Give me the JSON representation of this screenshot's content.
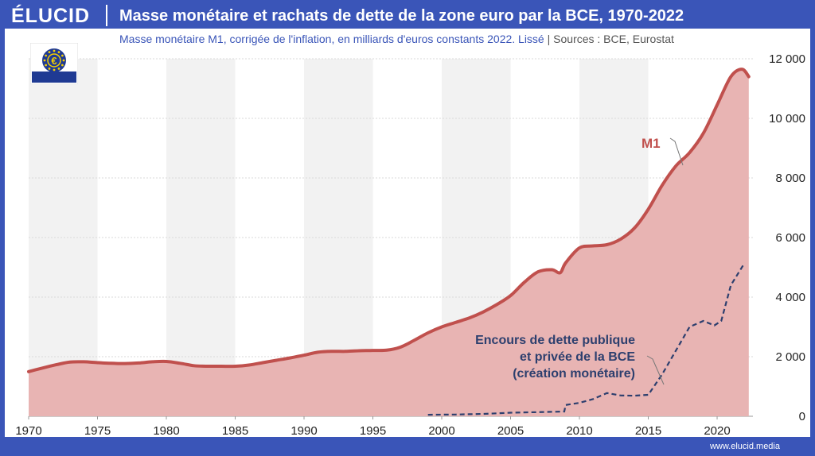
{
  "header": {
    "logo": "ÉLUCID",
    "title": "Masse monétaire et rachats de dette de la zone euro par la BCE, 1970-2022"
  },
  "subtitle": {
    "main": "Masse monétaire M1, corrigée de l'inflation, en milliards d'euros constants 2022. Lissé",
    "sep": "|",
    "sources": "Sources : BCE, Eurostat"
  },
  "footer": {
    "url": "www.elucid.media"
  },
  "logo_icon": "ecb-euro-stars-icon",
  "colors": {
    "brand": "#3a55b8",
    "m1_line": "#c0504d",
    "m1_fill": "#e8b4b3",
    "ecb_line": "#2d3f6e",
    "band": "#f2f2f2"
  },
  "chart_data": {
    "type": "area",
    "x_ticks": [
      1970,
      1975,
      1980,
      1985,
      1990,
      1995,
      2000,
      2005,
      2010,
      2015,
      2020
    ],
    "y_ticks": [
      0,
      2000,
      4000,
      6000,
      8000,
      10000,
      12000
    ],
    "y_tick_labels": [
      "0",
      "2 000",
      "4 000",
      "6 000",
      "8 000",
      "10 000",
      "12 000"
    ],
    "xlim": [
      1970,
      2022.6
    ],
    "ylim": [
      0,
      12000
    ],
    "alternating_bands": true,
    "series": [
      {
        "name": "M1",
        "style": "solid-area",
        "points": [
          [
            1970,
            1500
          ],
          [
            1971,
            1620
          ],
          [
            1972,
            1730
          ],
          [
            1973,
            1820
          ],
          [
            1974,
            1830
          ],
          [
            1975,
            1800
          ],
          [
            1976,
            1780
          ],
          [
            1977,
            1770
          ],
          [
            1978,
            1790
          ],
          [
            1979,
            1830
          ],
          [
            1980,
            1840
          ],
          [
            1981,
            1780
          ],
          [
            1982,
            1700
          ],
          [
            1983,
            1680
          ],
          [
            1984,
            1680
          ],
          [
            1985,
            1680
          ],
          [
            1986,
            1720
          ],
          [
            1987,
            1800
          ],
          [
            1988,
            1880
          ],
          [
            1989,
            1960
          ],
          [
            1990,
            2050
          ],
          [
            1991,
            2150
          ],
          [
            1992,
            2180
          ],
          [
            1993,
            2180
          ],
          [
            1994,
            2200
          ],
          [
            1995,
            2210
          ],
          [
            1996,
            2220
          ],
          [
            1997,
            2320
          ],
          [
            1998,
            2550
          ],
          [
            1999,
            2800
          ],
          [
            2000,
            3000
          ],
          [
            2001,
            3150
          ],
          [
            2002,
            3300
          ],
          [
            2003,
            3500
          ],
          [
            2004,
            3750
          ],
          [
            2005,
            4050
          ],
          [
            2006,
            4500
          ],
          [
            2007,
            4850
          ],
          [
            2008,
            4920
          ],
          [
            2008.6,
            4820
          ],
          [
            2009,
            5150
          ],
          [
            2010,
            5650
          ],
          [
            2011,
            5720
          ],
          [
            2012,
            5760
          ],
          [
            2013,
            5950
          ],
          [
            2014,
            6320
          ],
          [
            2015,
            6950
          ],
          [
            2016,
            7750
          ],
          [
            2017,
            8400
          ],
          [
            2018,
            8850
          ],
          [
            2019,
            9500
          ],
          [
            2020,
            10450
          ],
          [
            2021,
            11400
          ],
          [
            2021.8,
            11650
          ],
          [
            2022.3,
            11400
          ]
        ]
      },
      {
        "name": "Encours de dette publique et privée de la BCE (création monétaire)",
        "style": "dashed",
        "points": [
          [
            1999,
            50
          ],
          [
            2000,
            55
          ],
          [
            2001,
            60
          ],
          [
            2002,
            70
          ],
          [
            2003,
            80
          ],
          [
            2004,
            100
          ],
          [
            2005,
            120
          ],
          [
            2006,
            130
          ],
          [
            2007,
            140
          ],
          [
            2008,
            150
          ],
          [
            2008.9,
            160
          ],
          [
            2009,
            380
          ],
          [
            2010,
            450
          ],
          [
            2011,
            580
          ],
          [
            2012,
            780
          ],
          [
            2013,
            700
          ],
          [
            2014,
            690
          ],
          [
            2015,
            720
          ],
          [
            2016,
            1400
          ],
          [
            2017,
            2200
          ],
          [
            2018,
            3000
          ],
          [
            2019,
            3200
          ],
          [
            2019.8,
            3050
          ],
          [
            2020.3,
            3200
          ],
          [
            2021,
            4400
          ],
          [
            2022,
            5150
          ]
        ]
      }
    ],
    "annotations": {
      "m1_label": "M1",
      "ecb_label_line1": "Encours de dette publique",
      "ecb_label_line2": "et privée de la BCE",
      "ecb_label_line3": "(création monétaire)"
    }
  }
}
